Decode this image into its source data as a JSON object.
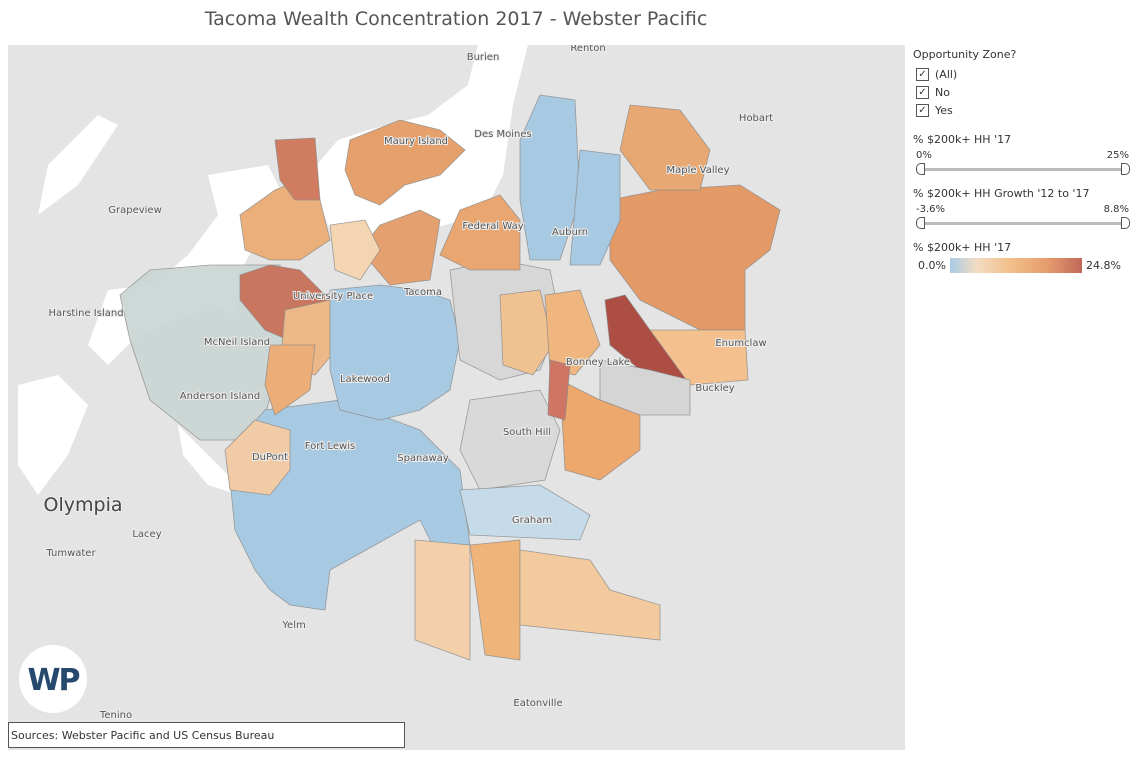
{
  "title": "Tacoma Wealth Concentration 2017 - Webster Pacific",
  "map": {
    "places": [
      "Renton",
      "Burien",
      "Des Moines",
      "Hobart",
      "Maple Valley",
      "Grapeview",
      "Maury Island",
      "Federal Way",
      "Auburn",
      "Harstine Island",
      "McNeil Island",
      "University Place",
      "Tacoma",
      "Anderson Island",
      "Lakewood",
      "Bonney Lake",
      "Enumclaw",
      "Buckley",
      "Fort Lewis",
      "DuPont",
      "Spanaway",
      "South Hill",
      "Olympia",
      "Lacey",
      "Tumwater",
      "Graham",
      "Yelm",
      "Tenino",
      "Eatonville"
    ],
    "logo": "WP",
    "source": "Sources: Webster Pacific and US Census Bureau"
  },
  "sidebar": {
    "filter": {
      "title": "Opportunity Zone?",
      "options": [
        "(All)",
        "No",
        "Yes"
      ]
    },
    "slider_share": {
      "title": "% $200k+ HH '17",
      "min": "0%",
      "max": "25%"
    },
    "slider_growth": {
      "title": "% $200k+ HH Growth '12 to '17",
      "min": "-3.6%",
      "max": "8.8%"
    },
    "legend": {
      "title": "% $200k+ HH '17",
      "min": "0.0%",
      "max": "24.8%"
    }
  }
}
